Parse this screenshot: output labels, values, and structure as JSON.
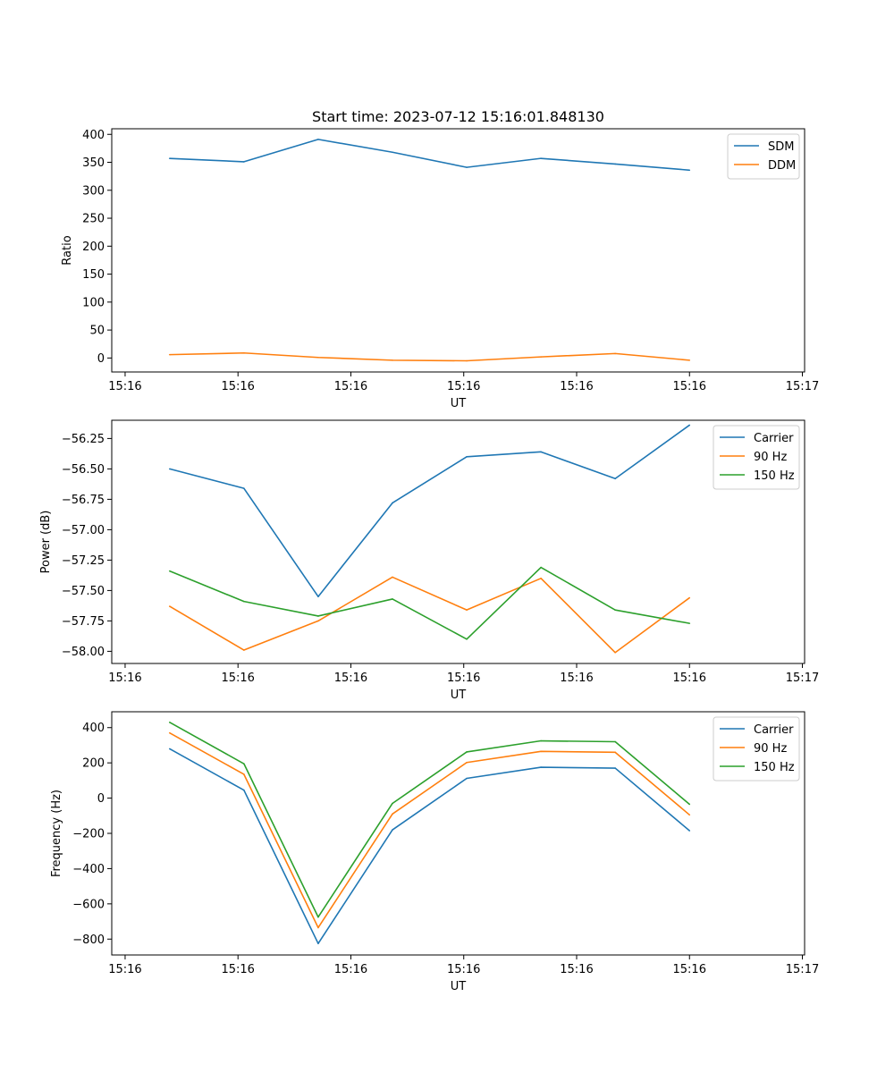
{
  "figure": {
    "title": "Start time: 2023-07-12 15:16:01.848130"
  },
  "chart_data": [
    {
      "type": "line",
      "title": "Start time: 2023-07-12 15:16:01.848130",
      "xlabel": "UT",
      "ylabel": "Ratio",
      "x": [
        0,
        1,
        2,
        3,
        4,
        5,
        6,
        7
      ],
      "xlim": [
        -0.78,
        8.55
      ],
      "x_ticks": [
        -0.6,
        0.92,
        2.44,
        3.96,
        5.48,
        7.0,
        8.52
      ],
      "x_tick_labels": [
        "15:16",
        "15:16",
        "15:16",
        "15:16",
        "15:16",
        "15:16",
        "15:17"
      ],
      "ylim": [
        -25,
        410
      ],
      "y_ticks": [
        0,
        50,
        100,
        150,
        200,
        250,
        300,
        350,
        400
      ],
      "y_tick_labels": [
        "0",
        "50",
        "100",
        "150",
        "200",
        "250",
        "300",
        "350",
        "400"
      ],
      "legend_position": "top-right",
      "series": [
        {
          "name": "SDM",
          "color": "#1f77b4",
          "values": [
            357,
            351,
            391,
            368,
            341,
            357,
            347,
            336
          ]
        },
        {
          "name": "DDM",
          "color": "#ff7f0e",
          "values": [
            6,
            9,
            1,
            -4,
            -5,
            2,
            8,
            -4
          ]
        }
      ]
    },
    {
      "type": "line",
      "title": "",
      "xlabel": "UT",
      "ylabel": "Power (dB)",
      "x": [
        0,
        1,
        2,
        3,
        4,
        5,
        6,
        7
      ],
      "xlim": [
        -0.78,
        8.55
      ],
      "x_ticks": [
        -0.6,
        0.92,
        2.44,
        3.96,
        5.48,
        7.0,
        8.52
      ],
      "x_tick_labels": [
        "15:16",
        "15:16",
        "15:16",
        "15:16",
        "15:16",
        "15:16",
        "15:17"
      ],
      "ylim": [
        -58.1,
        -56.1
      ],
      "y_ticks": [
        -58.0,
        -57.75,
        -57.5,
        -57.25,
        -57.0,
        -56.75,
        -56.5,
        -56.25
      ],
      "y_tick_labels": [
        "−58.00",
        "−57.75",
        "−57.50",
        "−57.25",
        "−57.00",
        "−56.75",
        "−56.50",
        "−56.25"
      ],
      "legend_position": "top-right",
      "series": [
        {
          "name": "Carrier",
          "color": "#1f77b4",
          "values": [
            -56.5,
            -56.66,
            -57.55,
            -56.78,
            -56.4,
            -56.36,
            -56.58,
            -56.14
          ]
        },
        {
          "name": "90 Hz",
          "color": "#ff7f0e",
          "values": [
            -57.63,
            -57.99,
            -57.75,
            -57.39,
            -57.66,
            -57.4,
            -58.01,
            -57.56
          ]
        },
        {
          "name": "150 Hz",
          "color": "#2ca02c",
          "values": [
            -57.34,
            -57.59,
            -57.71,
            -57.57,
            -57.9,
            -57.31,
            -57.66,
            -57.77
          ]
        }
      ]
    },
    {
      "type": "line",
      "title": "",
      "xlabel": "UT",
      "ylabel": "Frequency (Hz)",
      "x": [
        0,
        1,
        2,
        3,
        4,
        5,
        6,
        7
      ],
      "xlim": [
        -0.78,
        8.55
      ],
      "x_ticks": [
        -0.6,
        0.92,
        2.44,
        3.96,
        5.48,
        7.0,
        8.52
      ],
      "x_tick_labels": [
        "15:16",
        "15:16",
        "15:16",
        "15:16",
        "15:16",
        "15:16",
        "15:17"
      ],
      "ylim": [
        -890,
        490
      ],
      "y_ticks": [
        -800,
        -600,
        -400,
        -200,
        0,
        200,
        400
      ],
      "y_tick_labels": [
        "−800",
        "−600",
        "−400",
        "−200",
        "0",
        "200",
        "400"
      ],
      "legend_position": "top-right",
      "series": [
        {
          "name": "Carrier",
          "color": "#1f77b4",
          "values": [
            280,
            45,
            -825,
            -180,
            112,
            175,
            170,
            -185
          ]
        },
        {
          "name": "90 Hz",
          "color": "#ff7f0e",
          "values": [
            370,
            135,
            -735,
            -90,
            202,
            265,
            260,
            -95
          ]
        },
        {
          "name": "150 Hz",
          "color": "#2ca02c",
          "values": [
            430,
            195,
            -675,
            -30,
            262,
            325,
            320,
            -35
          ]
        }
      ]
    }
  ]
}
